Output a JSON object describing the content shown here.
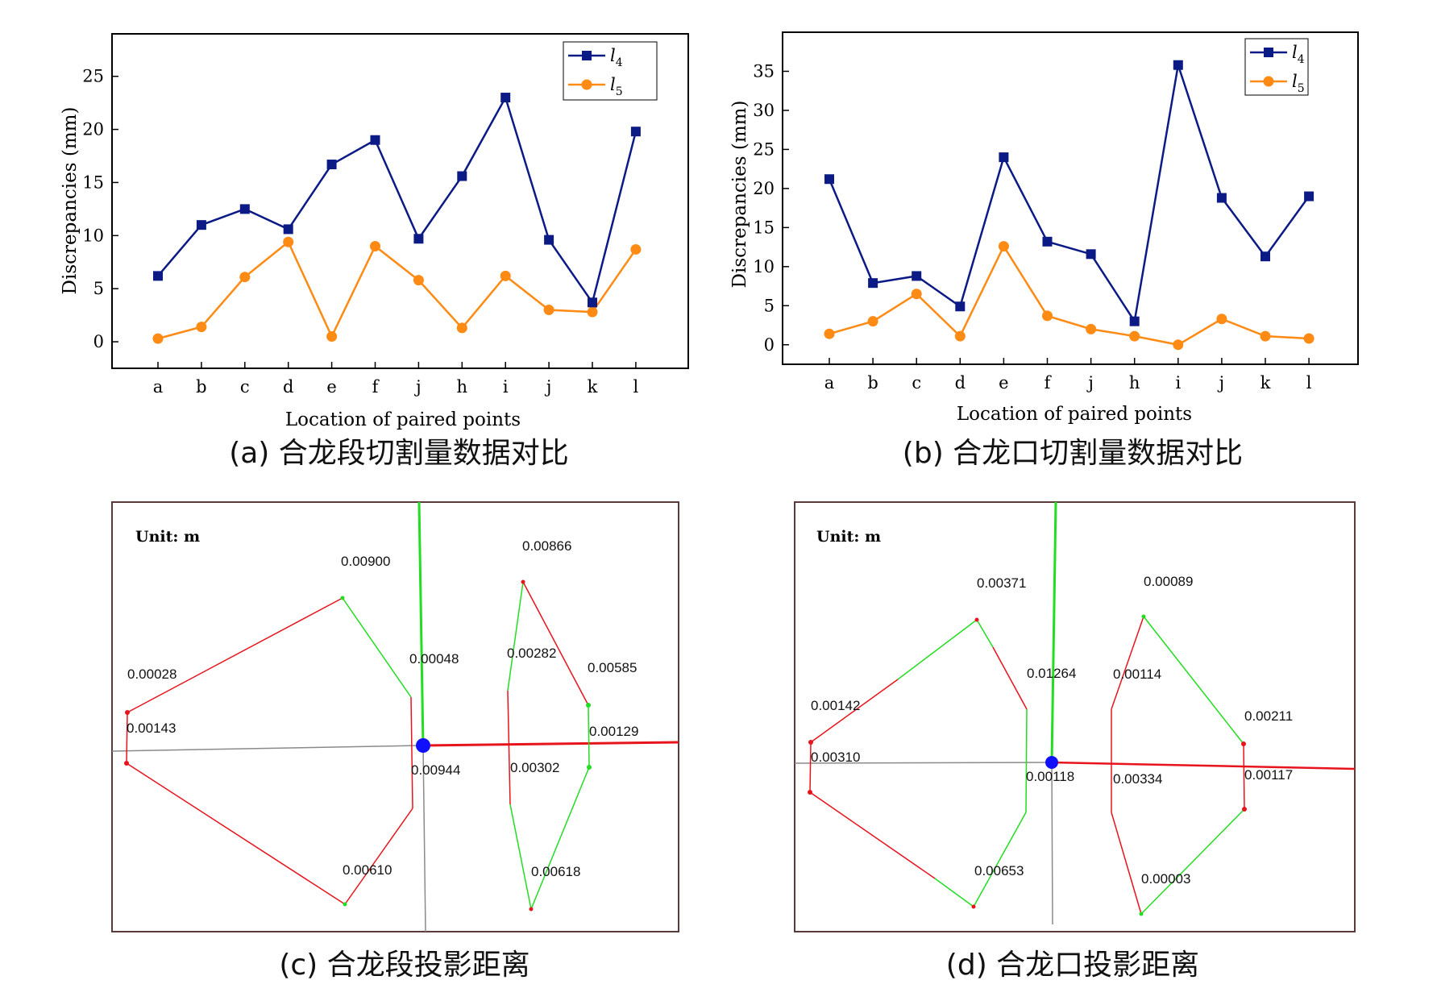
{
  "chart_data": [
    {
      "type": "line",
      "xlabel": "Location of paired points",
      "ylabel": "Discrepancies (mm)",
      "categories": [
        "a",
        "b",
        "c",
        "d",
        "e",
        "f",
        "j",
        "h",
        "i",
        "j",
        "k",
        "l"
      ],
      "ylim": [
        -2.5,
        29
      ],
      "yticks": [
        0,
        5,
        10,
        15,
        20,
        25
      ],
      "legend_position": "top-right",
      "series": [
        {
          "name": "l",
          "sub": "4",
          "color": "#0b1a85",
          "marker": "square",
          "values": [
            6.2,
            11.0,
            12.5,
            10.6,
            16.7,
            19.0,
            9.7,
            15.6,
            23.0,
            9.6,
            3.7,
            19.8
          ]
        },
        {
          "name": "l",
          "sub": "5",
          "color": "#ff8a14",
          "marker": "circle",
          "values": [
            0.3,
            1.4,
            6.1,
            9.4,
            0.5,
            9.0,
            5.8,
            1.3,
            6.2,
            3.0,
            2.8,
            8.7
          ]
        }
      ],
      "caption": "(a) 合龙段切割量数据对比"
    },
    {
      "type": "line",
      "xlabel": "Location of paired points",
      "ylabel": "Discrepancies (mm)",
      "categories": [
        "a",
        "b",
        "c",
        "d",
        "e",
        "f",
        "j",
        "h",
        "i",
        "j",
        "k",
        "l"
      ],
      "ylim": [
        -2.5,
        40
      ],
      "yticks": [
        0,
        5,
        10,
        15,
        20,
        25,
        30,
        35
      ],
      "legend_position": "top-right",
      "series": [
        {
          "name": "l",
          "sub": "4",
          "color": "#0b1a85",
          "marker": "square",
          "values": [
            21.2,
            7.9,
            8.8,
            4.9,
            24.0,
            13.2,
            11.6,
            3.0,
            35.8,
            18.8,
            11.3,
            19.0
          ]
        },
        {
          "name": "l",
          "sub": "5",
          "color": "#ff8a14",
          "marker": "circle",
          "values": [
            1.4,
            3.0,
            6.5,
            1.1,
            12.6,
            3.7,
            2.0,
            1.1,
            0.0,
            3.3,
            1.1,
            0.8
          ]
        }
      ],
      "caption": "(b) 合龙口切割量数据对比"
    }
  ],
  "panel_c": {
    "unit": "Unit: m",
    "labels": [
      "0.00900",
      "0.00866",
      "0.00028",
      "0.00048",
      "0.00282",
      "0.00585",
      "0.00143",
      "0.00129",
      "0.00944",
      "0.00302",
      "0.00610",
      "0.00618"
    ],
    "caption": "(c) 合龙段投影距离"
  },
  "panel_d": {
    "unit": "Unit: m",
    "labels": [
      "0.00371",
      "0.00089",
      "0.01264",
      "0.00114",
      "0.00142",
      "0.00211",
      "0.00310",
      "0.00118",
      "0.00334",
      "0.00117",
      "0.00653",
      "0.00003"
    ],
    "caption": "(d) 合龙口投影距离"
  },
  "colors": {
    "red": "#e8141c",
    "green": "#22dd22",
    "gray": "#8a8a8a",
    "center": "#1010ff",
    "frame": "#5a3a3a"
  }
}
